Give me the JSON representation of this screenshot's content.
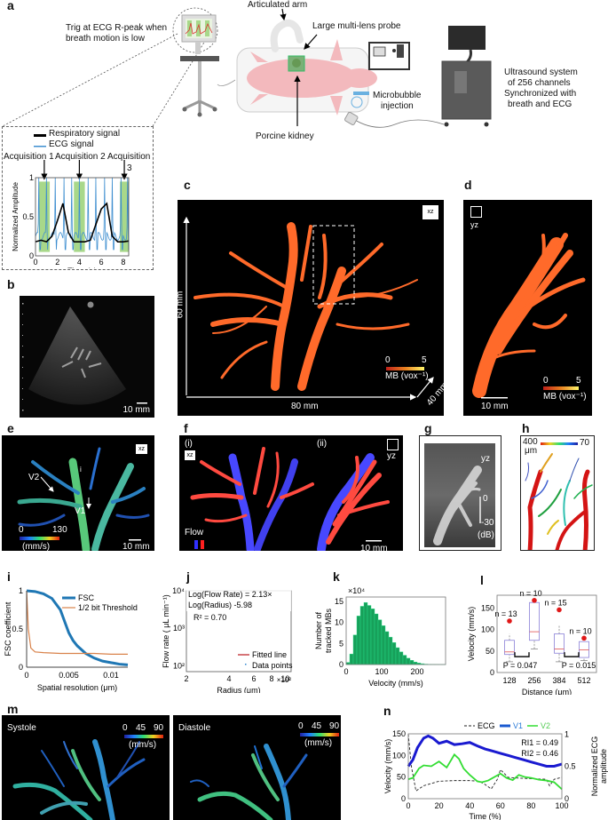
{
  "figure": {
    "panel_labels": [
      "a",
      "b",
      "c",
      "d",
      "e",
      "f",
      "g",
      "h",
      "i",
      "j",
      "k",
      "l",
      "m",
      "n"
    ]
  },
  "a": {
    "trig_text_1": "Trig at ECG R-peak when",
    "trig_text_2": "breath motion is low",
    "articulated_arm": "Articulated arm",
    "probe": "Large multi-lens probe",
    "kidney": "Porcine kidney",
    "microbubble_1": "Microbubble",
    "microbubble_2": "injection",
    "us_1": "Ultrasound system",
    "us_2": "of 256 channels",
    "us_3": "Synchronized with",
    "us_4": "breath and ECG",
    "legend_resp": "Respiratory signal",
    "legend_ecg": "ECG signal",
    "acq1": "Acquisition 1",
    "acq2": "Acquisition 2",
    "acq3": "Acquisition",
    "acq3b": "3",
    "colors": {
      "resp": "#000000",
      "ecg": "#3f8fd0",
      "window": "#a8d88a"
    }
  },
  "b": {
    "scale": "10 mm"
  },
  "c": {
    "view": "xz",
    "height": "60 mm",
    "width": "80 mm",
    "depth": "40 mm",
    "cbar_min": "0",
    "cbar_max": "5",
    "cbar_label": "MB (vox⁻¹)"
  },
  "d": {
    "view": "yz",
    "scale": "10 mm",
    "cbar_min": "0",
    "cbar_max": "5",
    "cbar_label": "MB (vox⁻¹)"
  },
  "e": {
    "view": "xz",
    "v1": "V1",
    "v2": "V2",
    "i_mark": "i",
    "cbar_min": "0",
    "cbar_max": "130",
    "cbar_unit": "(mm/s)",
    "scale": "10 mm"
  },
  "f": {
    "sub_i": "(i)",
    "sub_ii": "(ii)",
    "view_i": "xz",
    "view_ii": "yz",
    "flow": "Flow",
    "scale": "10 mm"
  },
  "g": {
    "view": "yz",
    "cbar_max": "0",
    "cbar_min": "-30",
    "unit": "(dB)"
  },
  "h": {
    "cbar_left": "400",
    "cbar_unit": "μm",
    "cbar_right": "70"
  },
  "m": {
    "systole": "Systole",
    "diastole": "Diastole",
    "cbar_ticks": [
      "0",
      "45",
      "90"
    ],
    "cbar_unit": "(mm/s)"
  },
  "chart_data": [
    {
      "id": "a-inset",
      "type": "line",
      "title": "",
      "xlabel": "Time (s)",
      "ylabel": "Normalized Amplitude",
      "xlim": [
        0,
        8.5
      ],
      "ylim": [
        0,
        1
      ],
      "xticks": [
        0,
        2,
        4,
        6,
        8
      ],
      "yticks": [
        0,
        0.5,
        1
      ],
      "acquisition_windows": [
        [
          0.3,
          1.3
        ],
        [
          3.5,
          4.5
        ],
        [
          7.7,
          8.5
        ]
      ],
      "series": [
        {
          "name": "Respiratory signal",
          "x": [
            0,
            0.5,
            1,
            1.5,
            2,
            2.5,
            3,
            3.5,
            4,
            4.5,
            5,
            5.5,
            6,
            6.5,
            7,
            7.5,
            8,
            8.5
          ],
          "y": [
            0.18,
            0.2,
            0.18,
            0.25,
            0.45,
            0.67,
            0.3,
            0.18,
            0.18,
            0.18,
            0.2,
            0.4,
            0.6,
            0.67,
            0.25,
            0.18,
            0.18,
            0.19
          ]
        },
        {
          "name": "ECG signal",
          "r_peaks": [
            0.3,
            1.0,
            1.8,
            2.6,
            3.3,
            4.0,
            4.8,
            5.5,
            6.3,
            7.0,
            7.8,
            8.4
          ],
          "baseline": 0.25,
          "peak": 1.0
        }
      ]
    },
    {
      "id": "i",
      "type": "line",
      "xlabel": "Spatial resolution (μm)",
      "ylabel": "FSC coefficient",
      "xlim": [
        0,
        0.012
      ],
      "ylim": [
        0,
        1
      ],
      "xticks": [
        "0",
        "0.005",
        "0.01"
      ],
      "yticks": [
        "0",
        "0.5",
        "1"
      ],
      "legend": "top-right",
      "series": [
        {
          "name": "FSC",
          "x": [
            0,
            0.001,
            0.002,
            0.003,
            0.004,
            0.0045,
            0.005,
            0.0055,
            0.006,
            0.007,
            0.008,
            0.009,
            0.01,
            0.011,
            0.012
          ],
          "y": [
            1,
            0.99,
            0.96,
            0.9,
            0.75,
            0.6,
            0.45,
            0.35,
            0.28,
            0.18,
            0.12,
            0.08,
            0.06,
            0.04,
            0.03
          ]
        },
        {
          "name": "1/2 bit Threshold",
          "x": [
            0,
            0.0002,
            0.0005,
            0.001,
            0.002,
            0.004,
            0.006,
            0.008,
            0.01,
            0.012
          ],
          "y": [
            1,
            0.5,
            0.25,
            0.2,
            0.19,
            0.18,
            0.18,
            0.18,
            0.17,
            0.17
          ]
        }
      ]
    },
    {
      "id": "j",
      "type": "scatter",
      "xlabel": "Radius (μm)",
      "x_multiplier": "×10²",
      "ylabel": "Flow rate ( μL min⁻¹)",
      "xscale": "log",
      "yscale": "log",
      "xlim": [
        2,
        11
      ],
      "ylim": [
        70,
        10000
      ],
      "xticks": [
        "2",
        "4",
        "6",
        "8",
        "10"
      ],
      "yticks": [
        "10²",
        "10³",
        "10⁴"
      ],
      "annotation_1": "Log(Flow Rate) = 2.13×",
      "annotation_2": "Log(Radius)  -5.98",
      "annotation_3": "R² = 0.70",
      "legend": [
        "Fitted line",
        "Data points"
      ],
      "fit": {
        "slope": 2.13,
        "intercept": -5.98,
        "r2": 0.7
      }
    },
    {
      "id": "k",
      "type": "bar",
      "xlabel": "Velocity (mm/s)",
      "ylabel": "Number of tracked MBs",
      "y_multiplier": "×10⁴",
      "xlim": [
        0,
        280
      ],
      "ylim": [
        0,
        16
      ],
      "xticks": [
        "0",
        "100",
        "200"
      ],
      "yticks": [
        "0",
        "5",
        "10",
        "15"
      ],
      "bin_width": 10,
      "x": [
        5,
        15,
        25,
        35,
        45,
        55,
        65,
        75,
        85,
        95,
        105,
        115,
        125,
        135,
        145,
        155,
        165,
        175,
        185,
        195,
        205,
        215,
        225,
        235,
        245,
        255,
        265,
        275
      ],
      "values": [
        0.5,
        2.5,
        7,
        11.5,
        13.8,
        14.7,
        14,
        13.2,
        12,
        10.6,
        9.2,
        7.8,
        6.5,
        5.2,
        4,
        3,
        2.2,
        1.5,
        1,
        0.6,
        0.35,
        0.2,
        0.1,
        0.05,
        0.03,
        0.02,
        0.01,
        0.01
      ]
    },
    {
      "id": "l",
      "type": "box",
      "xlabel": "Distance (μm)",
      "ylabel": "Velocity (mm/s)",
      "ylim": [
        0,
        180
      ],
      "yticks": [
        "0",
        "50",
        "100",
        "150"
      ],
      "categories": [
        "128",
        "256",
        "384",
        "512"
      ],
      "n_labels": [
        "n = 13",
        "n = 10",
        "n = 15",
        "n = 10"
      ],
      "boxes": [
        {
          "min": 25,
          "q1": 42,
          "median": 48,
          "q3": 75,
          "max": 90,
          "outlier": 120
        },
        {
          "min": 55,
          "q1": 75,
          "median": 95,
          "q3": 163,
          "max": 163,
          "outlier": 168
        },
        {
          "min": 25,
          "q1": 45,
          "median": 55,
          "q3": 90,
          "max": 110,
          "outlier": 146
        },
        {
          "min": 28,
          "q1": 35,
          "median": 53,
          "q3": 72,
          "max": 72,
          "outlier": 80
        }
      ],
      "p_values": [
        "P = 0.047",
        "P = 0.015"
      ]
    },
    {
      "id": "n",
      "type": "line",
      "xlabel": "Time (%)",
      "ylabel": "Velocity (mm/s)",
      "y2label": "Normalized  ECG amplitude",
      "xlim": [
        0,
        100
      ],
      "ylim": [
        0,
        150
      ],
      "y2lim": [
        0,
        1.1
      ],
      "xticks": [
        "0",
        "20",
        "40",
        "60",
        "80",
        "100"
      ],
      "yticks": [
        "0",
        "50",
        "100",
        "150"
      ],
      "y2ticks": [
        "0",
        "0.5",
        "1"
      ],
      "legend": [
        "ECG",
        "V1",
        "V2"
      ],
      "annotation_1": "RI1 = 0.49",
      "annotation_2": "RI2 = 0.46",
      "series": [
        {
          "name": "ECG",
          "axis": "right",
          "x": [
            0,
            2,
            5,
            10,
            20,
            30,
            40,
            46,
            50,
            54,
            58,
            60,
            65,
            70,
            80,
            90,
            92,
            95,
            100
          ],
          "y": [
            1.0,
            0.5,
            0.12,
            0.2,
            0.27,
            0.28,
            0.28,
            0.27,
            0.22,
            0.15,
            0.3,
            0.45,
            0.33,
            0.32,
            0.31,
            0.3,
            0.2,
            0.3,
            0.33
          ]
        },
        {
          "name": "V1",
          "axis": "left",
          "x": [
            0,
            3,
            6,
            10,
            13,
            16,
            20,
            25,
            30,
            35,
            40,
            45,
            50,
            55,
            60,
            65,
            70,
            75,
            80,
            85,
            90,
            95,
            100
          ],
          "y": [
            75,
            90,
            118,
            140,
            145,
            140,
            128,
            133,
            125,
            127,
            130,
            122,
            115,
            110,
            105,
            100,
            95,
            90,
            85,
            80,
            75,
            75,
            80
          ]
        },
        {
          "name": "V2",
          "axis": "left",
          "x": [
            0,
            3,
            7,
            10,
            15,
            20,
            25,
            30,
            33,
            36,
            40,
            45,
            48,
            52,
            56,
            60,
            64,
            68,
            72,
            76,
            80,
            85,
            90,
            95,
            100
          ],
          "y": [
            45,
            48,
            70,
            77,
            75,
            86,
            72,
            102,
            92,
            70,
            55,
            40,
            38,
            42,
            50,
            58,
            48,
            43,
            55,
            50,
            48,
            44,
            42,
            38,
            22
          ]
        }
      ],
      "colors": {
        "ECG": "#222222",
        "V1": "#1a1ad0",
        "V2": "#33dd33"
      }
    }
  ]
}
